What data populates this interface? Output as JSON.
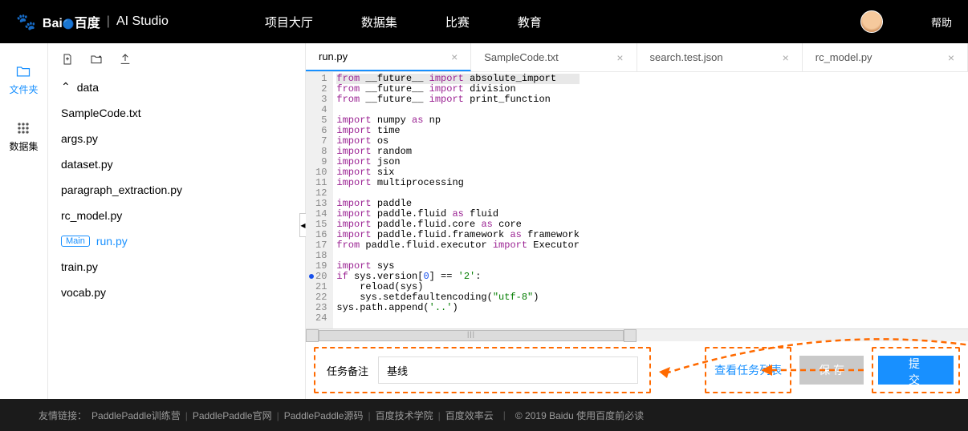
{
  "topbar": {
    "brand_cn": "百度",
    "brand_divider": "|",
    "brand_product": "AI Studio",
    "nav": [
      "项目大厅",
      "数据集",
      "比赛",
      "教育"
    ],
    "help": "帮助"
  },
  "rail": {
    "files": "文件夹",
    "dataset": "数据集"
  },
  "filetree": {
    "folder": "data",
    "files": [
      "SampleCode.txt",
      "args.py",
      "dataset.py",
      "paragraph_extraction.py",
      "rc_model.py",
      "run.py",
      "train.py",
      "vocab.py"
    ],
    "main_badge": "Main",
    "active_index": 5
  },
  "tabs": [
    {
      "label": "run.py",
      "active": true
    },
    {
      "label": "SampleCode.txt",
      "active": false
    },
    {
      "label": "search.test.json",
      "active": false
    },
    {
      "label": "rc_model.py",
      "active": false
    }
  ],
  "code": {
    "lines": [
      {
        "n": 1,
        "t": "from",
        "a": "__future__",
        "k": "import",
        "b": "absolute_import"
      },
      {
        "n": 2,
        "t": "from",
        "a": "__future__",
        "k": "import",
        "b": "division"
      },
      {
        "n": 3,
        "t": "from",
        "a": "__future__",
        "k": "import",
        "b": "print_function"
      },
      {
        "n": 4,
        "blank": true
      },
      {
        "n": 5,
        "t": "import",
        "a": "numpy",
        "k": "as",
        "b": "np"
      },
      {
        "n": 6,
        "t": "import",
        "a": "time"
      },
      {
        "n": 7,
        "t": "import",
        "a": "os"
      },
      {
        "n": 8,
        "t": "import",
        "a": "random"
      },
      {
        "n": 9,
        "t": "import",
        "a": "json"
      },
      {
        "n": 10,
        "t": "import",
        "a": "six"
      },
      {
        "n": 11,
        "t": "import",
        "a": "multiprocessing"
      },
      {
        "n": 12,
        "blank": true
      },
      {
        "n": 13,
        "t": "import",
        "a": "paddle"
      },
      {
        "n": 14,
        "t": "import",
        "a": "paddle.fluid",
        "k": "as",
        "b": "fluid"
      },
      {
        "n": 15,
        "t": "import",
        "a": "paddle.fluid.core",
        "k": "as",
        "b": "core"
      },
      {
        "n": 16,
        "t": "import",
        "a": "paddle.fluid.framework",
        "k": "as",
        "b": "framework"
      },
      {
        "n": 17,
        "t": "from",
        "a": "paddle.fluid.executor",
        "k": "import",
        "b": "Executor"
      },
      {
        "n": 18,
        "blank": true
      },
      {
        "n": 19,
        "t": "import",
        "a": "sys"
      },
      {
        "n": 20,
        "raw_if": true
      },
      {
        "n": 21,
        "raw": "    reload(sys)"
      },
      {
        "n": 22,
        "raw_enc": true
      },
      {
        "n": 23,
        "raw_path": true
      },
      {
        "n": 24,
        "blank": true
      }
    ]
  },
  "bottom": {
    "task_label": "任务备注",
    "task_value": "基线",
    "view_tasks": "查看任务列表",
    "save": "保 存",
    "submit": "提 交"
  },
  "footer": {
    "prefix": "友情链接：",
    "links": [
      "PaddlePaddle训练营",
      "PaddlePaddle官网",
      "PaddlePaddle源码",
      "百度技术学院",
      "百度效率云"
    ],
    "copyright": "© 2019 Baidu 使用百度前必读"
  },
  "colors": {
    "accent": "#1890ff",
    "annotation": "#ff6a00"
  }
}
